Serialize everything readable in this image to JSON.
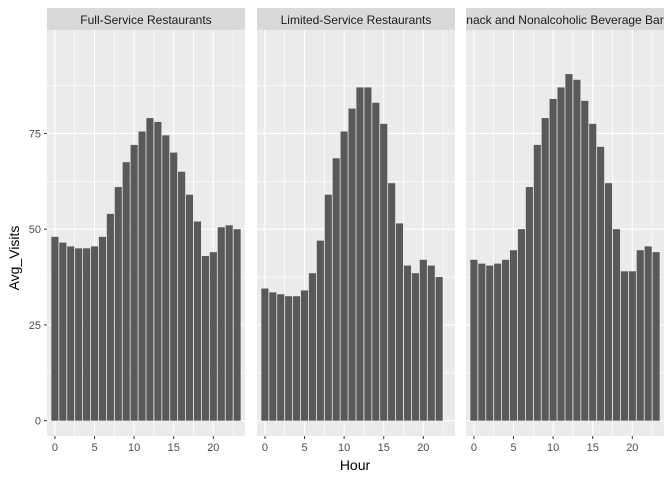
{
  "chart_data": {
    "type": "bar",
    "xlabel": "Hour",
    "ylabel": "Avg_Visits",
    "xlim": [
      -1,
      24
    ],
    "ylim": [
      -4,
      102
    ],
    "x_ticks": [
      0,
      5,
      10,
      15,
      20
    ],
    "y_ticks": [
      0,
      25,
      50,
      75
    ],
    "x": [
      0,
      1,
      2,
      3,
      4,
      5,
      6,
      7,
      8,
      9,
      10,
      11,
      12,
      13,
      14,
      15,
      16,
      17,
      18,
      19,
      20,
      21,
      22,
      23
    ],
    "colors": {
      "bar": "#595959",
      "panel": "#ebebeb",
      "strip": "#d9d9d9"
    },
    "grid": true,
    "facets": [
      {
        "strip": "Full-Service Restaurants",
        "values": [
          48,
          46.5,
          45.5,
          45,
          45,
          45.5,
          48,
          54,
          61,
          67.5,
          72,
          75.5,
          79,
          78,
          74.5,
          70,
          65,
          59,
          52,
          43,
          44,
          50.5,
          51,
          50
        ]
      },
      {
        "strip": "Limited-Service Restaurants",
        "values": [
          34.5,
          33.5,
          33,
          32.5,
          32.5,
          34,
          38.5,
          47,
          59,
          68.5,
          75.5,
          81.5,
          87,
          87,
          83,
          77.5,
          62,
          51.5,
          40.5,
          38.5,
          42,
          40.5,
          37.5,
          0
        ]
      },
      {
        "strip": "nack and Nonalcoholic Beverage Bar",
        "values": [
          42,
          41,
          40.5,
          41,
          42,
          44.5,
          50,
          61,
          72,
          79,
          84,
          87,
          90.5,
          89,
          83.5,
          77.5,
          71.5,
          62,
          50,
          39,
          39,
          44.5,
          45.5,
          44
        ]
      }
    ]
  }
}
